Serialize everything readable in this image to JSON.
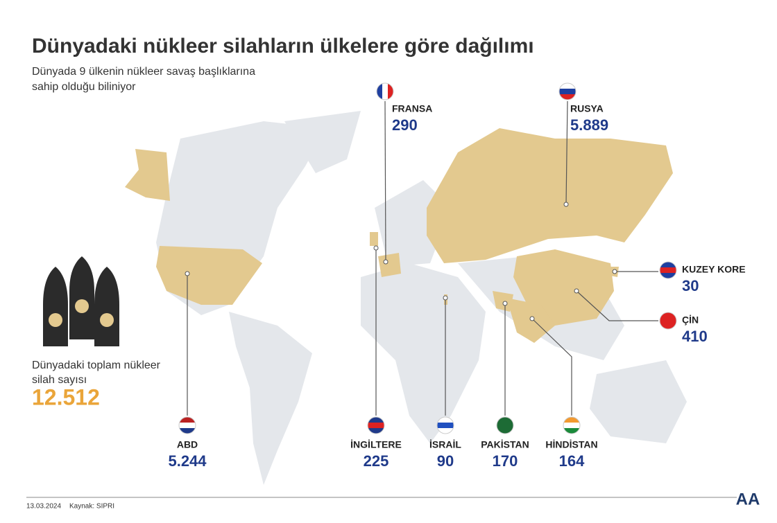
{
  "header": {
    "title": "Dünyadaki nükleer silahların ülkelere göre dağılımı",
    "subtitle_lines": [
      "Dünyada 9 ülkenin nükleer savaş başlıklarına",
      "sahip olduğu biliniyor"
    ]
  },
  "total": {
    "label_lines": [
      "Dünyadaki toplam nükleer",
      "silah sayısı"
    ],
    "value": "12.512"
  },
  "countries": [
    {
      "name": "FRANSA",
      "value": "290"
    },
    {
      "name": "RUSYA",
      "value": "5.889"
    },
    {
      "name": "KUZEY KORE",
      "value": "30"
    },
    {
      "name": "ÇİN",
      "value": "410"
    },
    {
      "name": "ABD",
      "value": "5.244"
    },
    {
      "name": "İNGİLTERE",
      "value": "225"
    },
    {
      "name": "İSRAİL",
      "value": "90"
    },
    {
      "name": "PAKİSTAN",
      "value": "170"
    },
    {
      "name": "HİNDİSTAN",
      "value": "164"
    }
  ],
  "footer": {
    "date": "13.03.2024",
    "source": "Kaynak: SIPRI",
    "logo": "AA"
  }
}
